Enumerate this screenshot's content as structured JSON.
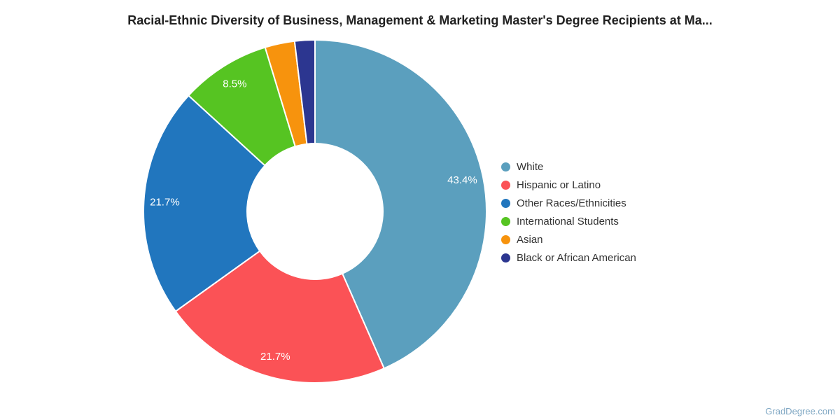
{
  "header": {
    "title": "Racial-Ethnic Diversity of Business, Management & Marketing Master's Degree Recipients at Ma..."
  },
  "chart_data": {
    "type": "pie",
    "subtype": "donut",
    "title": "Racial-Ethnic Diversity of Business, Management & Marketing Master's Degree Recipients at Ma...",
    "start_angle_deg": 0,
    "direction": "clockwise",
    "legend_position": "right",
    "slices": [
      {
        "label": "White",
        "value": 43.4,
        "color": "#5B9FBE",
        "data_label": "43.4%"
      },
      {
        "label": "Hispanic or Latino",
        "value": 21.7,
        "color": "#FB5256",
        "data_label": "21.7%"
      },
      {
        "label": "Other Races/Ethnicities",
        "value": 21.7,
        "color": "#2176BE",
        "data_label": "21.7%"
      },
      {
        "label": "International Students",
        "value": 8.5,
        "color": "#56C422",
        "data_label": "8.5%"
      },
      {
        "label": "Asian",
        "value": 2.8,
        "color": "#F7930D",
        "data_label": ""
      },
      {
        "label": "Black or African American",
        "value": 1.9,
        "color": "#2C3690",
        "data_label": ""
      }
    ],
    "slice_border_color": "#ffffff",
    "label_text_color": "#ffffff"
  },
  "watermark": {
    "text": "GradDegree.com"
  }
}
